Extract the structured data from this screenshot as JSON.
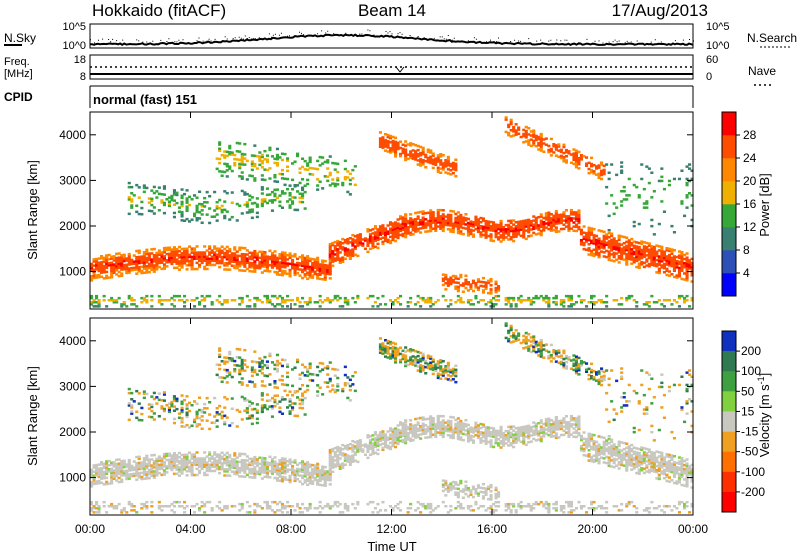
{
  "header": {
    "radar": "Hokkaido (fitACF)",
    "beam": "Beam 14",
    "date": "17/Aug/2013"
  },
  "noise_panel": {
    "left_label": "N.Sky",
    "right_label": "N.Search",
    "left_ticks": [
      "10^5",
      "10^0"
    ],
    "right_ticks": [
      "10^5",
      "10^0"
    ]
  },
  "freq_panel": {
    "left_label_line1": "Freq.",
    "left_label_line2": "[MHz]",
    "right_label": "Nave",
    "left_ticks": [
      "18",
      "8"
    ],
    "right_ticks": [
      "60",
      "0"
    ]
  },
  "cpid_panel": {
    "label": "CPID",
    "text": "normal (fast) 151"
  },
  "chart_data": [
    {
      "type": "heatmap",
      "title": "",
      "parameter": "Power",
      "colorbar_label": "Power [dB]",
      "ylabel": "Slant Range [km]",
      "xlabel": "",
      "x_ticks": [
        "00:00",
        "04:00",
        "08:00",
        "12:00",
        "16:00",
        "20:00",
        "00:00"
      ],
      "y_ticks": [
        1000,
        2000,
        3000,
        4000
      ],
      "ylim": [
        180,
        4500
      ],
      "xlim_hours": [
        0,
        24
      ],
      "colorbar_ticks": [
        4,
        8,
        12,
        16,
        20,
        24,
        28
      ],
      "colorbar_range": [
        0,
        32
      ],
      "colorbar_colors": [
        "#0000ff",
        "#2c4fb8",
        "#3a8070",
        "#36a838",
        "#f0b000",
        "#ff8800",
        "#ff4d00",
        "#ff0000"
      ]
    },
    {
      "type": "heatmap",
      "title": "",
      "parameter": "Velocity",
      "colorbar_label": "Velocity [m s^-1]",
      "ylabel": "Slant Range [km]",
      "xlabel": "Time UT",
      "x_ticks": [
        "00:00",
        "04:00",
        "08:00",
        "12:00",
        "16:00",
        "20:00",
        "00:00"
      ],
      "y_ticks": [
        1000,
        2000,
        3000,
        4000
      ],
      "ylim": [
        180,
        4500
      ],
      "xlim_hours": [
        0,
        24
      ],
      "colorbar_ticks": [
        "200",
        "100",
        "50",
        "15",
        "-15",
        "-50",
        "-100",
        "-200"
      ],
      "colorbar_colors": [
        "#1030c0",
        "#2f7a50",
        "#3ea040",
        "#80d040",
        "#c8c8c0",
        "#f0a020",
        "#ff7000",
        "#ff3000",
        "#ff0000"
      ]
    }
  ]
}
